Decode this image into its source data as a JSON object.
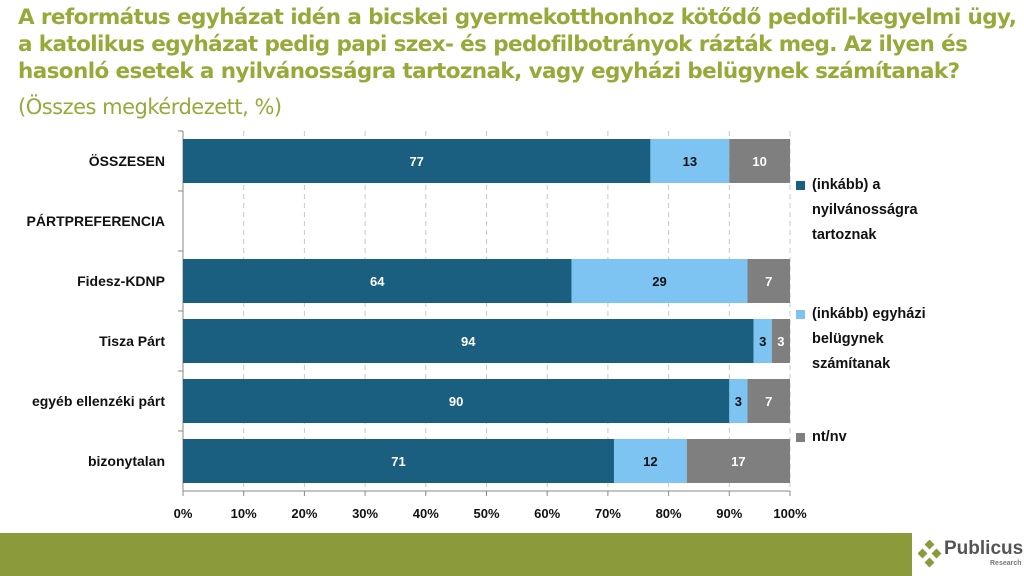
{
  "title": "A református egyházat idén a bicskei gyermekotthonhoz kötődő pedofil-kegyelmi ügy, a katolikus egyházat pedig papi szex- és pedofilbotrányok rázták meg. Az ilyen és hasonló esetek a nyilvánosságra tartoznak, vagy egyházi belügynek számítanak?",
  "subtitle": "(Összes megkérdezett, %)",
  "logo": {
    "name": "Publicus",
    "sub": "Research"
  },
  "chart_data": {
    "type": "bar",
    "orientation": "horizontal-stacked-100",
    "categories": [
      "ÖSSZESEN",
      "PÁRTPREFERENCIA",
      "Fidesz-KDNP",
      "Tisza Párt",
      "egyéb ellenzéki párt",
      "bizonytalan"
    ],
    "series": [
      {
        "name": "(inkább) a nyilvánosságra tartoznak",
        "color": "#1a5e80",
        "values": [
          77,
          null,
          64,
          94,
          90,
          71
        ]
      },
      {
        "name": "(inkább) egyházi belügynek számítanak",
        "color": "#7dc4f2",
        "values": [
          13,
          null,
          29,
          3,
          3,
          12
        ]
      },
      {
        "name": "nt/nv",
        "color": "#7f7f7f",
        "values": [
          10,
          null,
          7,
          3,
          7,
          17
        ]
      }
    ],
    "xlim": [
      0,
      100
    ],
    "xticks": [
      "0%",
      "10%",
      "20%",
      "30%",
      "40%",
      "50%",
      "60%",
      "70%",
      "80%",
      "90%",
      "100%"
    ],
    "grid": true,
    "legend": "right"
  }
}
